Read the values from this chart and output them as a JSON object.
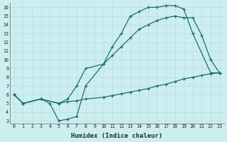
{
  "xlabel": "Humidex (Indice chaleur)",
  "bg_color": "#cceef0",
  "line_color": "#1a6e6e",
  "grid_color": "#b8dede",
  "xlim": [
    -0.5,
    23.5
  ],
  "ylim": [
    2.7,
    16.5
  ],
  "xticks": [
    0,
    1,
    2,
    3,
    4,
    5,
    6,
    7,
    8,
    9,
    10,
    11,
    12,
    13,
    14,
    15,
    16,
    17,
    18,
    19,
    20,
    21,
    22,
    23
  ],
  "yticks": [
    3,
    4,
    5,
    6,
    7,
    8,
    9,
    10,
    11,
    12,
    13,
    14,
    15,
    16
  ],
  "curve1_x": [
    0,
    1,
    3,
    4,
    5,
    6,
    7,
    8,
    10,
    11,
    12,
    13,
    14,
    15,
    16,
    17,
    18,
    19,
    20,
    22,
    23
  ],
  "curve1_y": [
    6.0,
    5.0,
    5.5,
    5.0,
    3.0,
    3.2,
    3.5,
    7.0,
    9.5,
    11.5,
    13.0,
    15.0,
    15.5,
    16.0,
    16.0,
    16.2,
    16.2,
    15.8,
    13.0,
    8.5,
    8.5
  ],
  "curve2_x": [
    0,
    1,
    3,
    5,
    6,
    7,
    8,
    10,
    11,
    12,
    13,
    14,
    15,
    16,
    17,
    18,
    19,
    20,
    21,
    22,
    23
  ],
  "curve2_y": [
    6.0,
    5.0,
    5.5,
    5.0,
    5.5,
    7.0,
    9.0,
    9.5,
    10.5,
    11.5,
    12.5,
    13.5,
    14.0,
    14.5,
    14.8,
    15.0,
    14.8,
    14.8,
    12.8,
    10.0,
    8.5
  ],
  "curve3_x": [
    0,
    1,
    3,
    5,
    6,
    7,
    8,
    10,
    11,
    12,
    13,
    14,
    15,
    16,
    17,
    18,
    19,
    20,
    21,
    22,
    23
  ],
  "curve3_y": [
    6.0,
    5.0,
    5.5,
    5.0,
    5.2,
    5.3,
    5.5,
    5.7,
    5.9,
    6.1,
    6.3,
    6.5,
    6.7,
    7.0,
    7.2,
    7.5,
    7.8,
    8.0,
    8.2,
    8.4,
    8.5
  ]
}
